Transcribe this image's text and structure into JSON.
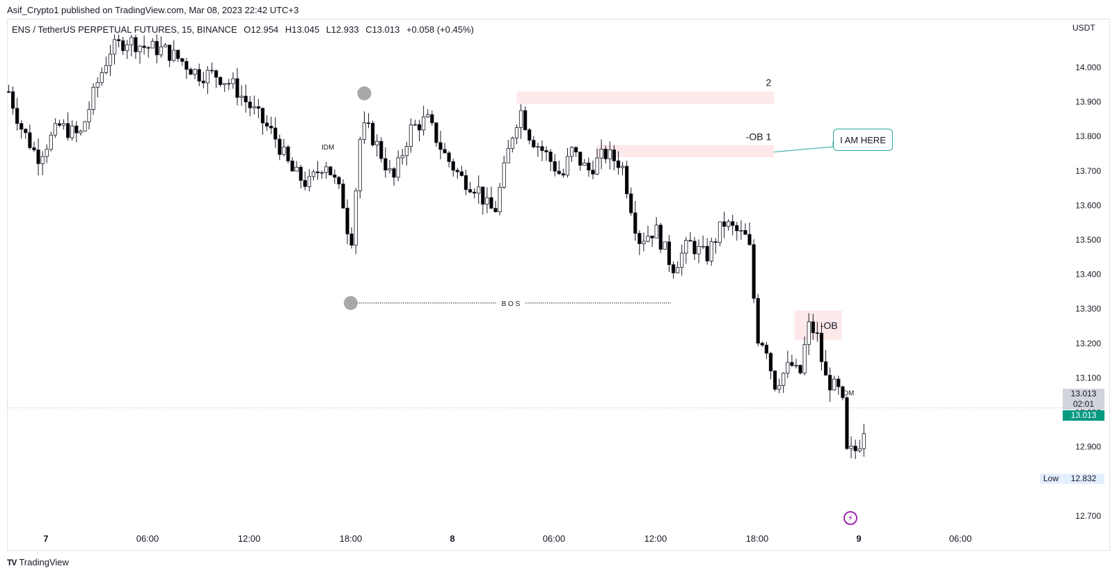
{
  "publisher": "Asif_Crypto1 published on TradingView.com, Mar 08, 2023 22:42 UTC+3",
  "header": {
    "symbol": "ENS / TetherUS PERPETUAL FUTURES, 15, BINANCE",
    "open": "O12.954",
    "high": "H13.045",
    "low": "L12.933",
    "close": "C13.013",
    "change": "+0.058 (+0.45%)"
  },
  "currency": "USDT",
  "brand": "TradingView",
  "brand_logo": "TV",
  "price_tags": {
    "last": "13.013",
    "close": "13.013",
    "timer": "02:01",
    "low_label": "Low",
    "low_value": "12.832"
  },
  "callout": "I AM HERE",
  "colors": {
    "up_body": "#ffffff",
    "down_body": "#000000",
    "wick": "#131722",
    "zone": "#fde8ea",
    "accent": "#089981",
    "callout_border": "#26a69a",
    "marker": "#9e9e9e"
  },
  "chart_data": {
    "type": "candlestick",
    "ylim": [
      12.65,
      14.1
    ],
    "yticks": [
      "14.000",
      "13.900",
      "13.800",
      "13.700",
      "13.600",
      "13.500",
      "13.400",
      "13.300",
      "13.200",
      "13.100",
      "13.000",
      "12.900",
      "12.800",
      "12.700"
    ],
    "x_ticks": [
      {
        "label": "7",
        "hour": 0,
        "bold": true
      },
      {
        "label": "06:00",
        "hour": 6
      },
      {
        "label": "12:00",
        "hour": 12
      },
      {
        "label": "18:00",
        "hour": 18
      },
      {
        "label": "8",
        "hour": 24,
        "bold": true
      },
      {
        "label": "06:00",
        "hour": 30
      },
      {
        "label": "12:00",
        "hour": 36
      },
      {
        "label": "18:00",
        "hour": 42
      },
      {
        "label": "9",
        "hour": 48,
        "bold": true
      },
      {
        "label": "06:00",
        "hour": 54
      }
    ],
    "anchor_points": [
      [
        -2.2,
        13.93
      ],
      [
        -1.5,
        13.83
      ],
      [
        -0.5,
        13.74
      ],
      [
        0.8,
        13.83
      ],
      [
        2.0,
        13.8
      ],
      [
        3.0,
        13.95
      ],
      [
        3.8,
        14.05
      ],
      [
        4.8,
        14.08
      ],
      [
        5.8,
        14.06
      ],
      [
        7.0,
        14.05
      ],
      [
        8.0,
        14.02
      ],
      [
        9.0,
        13.98
      ],
      [
        10.0,
        13.98
      ],
      [
        11.0,
        13.95
      ],
      [
        12.5,
        13.86
      ],
      [
        13.5,
        13.8
      ],
      [
        14.5,
        13.7
      ],
      [
        15.5,
        13.66
      ],
      [
        16.5,
        13.73
      ],
      [
        17.5,
        13.62
      ],
      [
        18.0,
        13.48
      ],
      [
        18.6,
        13.82
      ],
      [
        19.0,
        13.82
      ],
      [
        19.5,
        13.78
      ],
      [
        20.5,
        13.67
      ],
      [
        21.5,
        13.82
      ],
      [
        22.5,
        13.85
      ],
      [
        23.5,
        13.75
      ],
      [
        24.5,
        13.68
      ],
      [
        25.5,
        13.65
      ],
      [
        26.0,
        13.6
      ],
      [
        26.5,
        13.58
      ],
      [
        27.5,
        13.8
      ],
      [
        28.0,
        13.88
      ],
      [
        28.6,
        13.8
      ],
      [
        29.5,
        13.75
      ],
      [
        30.5,
        13.68
      ],
      [
        31.0,
        13.76
      ],
      [
        32.0,
        13.7
      ],
      [
        33.0,
        13.75
      ],
      [
        34.0,
        13.72
      ],
      [
        35.0,
        13.5
      ],
      [
        36.0,
        13.53
      ],
      [
        37.0,
        13.42
      ],
      [
        38.0,
        13.49
      ],
      [
        39.0,
        13.45
      ],
      [
        40.0,
        13.55
      ],
      [
        41.5,
        13.5
      ],
      [
        42.0,
        13.22
      ],
      [
        42.5,
        13.2
      ],
      [
        43.0,
        13.08
      ],
      [
        44.0,
        13.14
      ],
      [
        44.5,
        13.1
      ],
      [
        45.0,
        13.25
      ],
      [
        45.5,
        13.23
      ],
      [
        46.0,
        13.1
      ],
      [
        47.0,
        13.05
      ],
      [
        47.3,
        12.88
      ],
      [
        47.8,
        12.89
      ],
      [
        48.2,
        12.93
      ],
      [
        48.5,
        13.01
      ]
    ],
    "zones": [
      {
        "label": "2",
        "from_hour": 27.8,
        "to_hour": 43.0,
        "low": 13.895,
        "high": 13.93
      },
      {
        "label": "-OB 1",
        "from_hour": 32.5,
        "to_hour": 43.0,
        "low": 13.74,
        "high": 13.775
      },
      {
        "label": "-OB",
        "from_hour": 44.2,
        "to_hour": 47.0,
        "low": 13.21,
        "high": 13.295
      }
    ],
    "levels": [
      {
        "label": "B O S",
        "from_hour": 18.0,
        "to_hour": 36.9,
        "price": 13.317
      },
      {
        "label": "IDM",
        "from_hour": 16.0,
        "to_hour": 17.3,
        "price": 13.77
      },
      {
        "label": "IDM",
        "from_hour": 46.6,
        "to_hour": 48.1,
        "price": 13.057
      }
    ],
    "markers": [
      {
        "hour": 18.8,
        "price": 13.925
      },
      {
        "hour": 18.0,
        "price": 13.317
      }
    ],
    "last_price": 13.013,
    "grid": false
  }
}
